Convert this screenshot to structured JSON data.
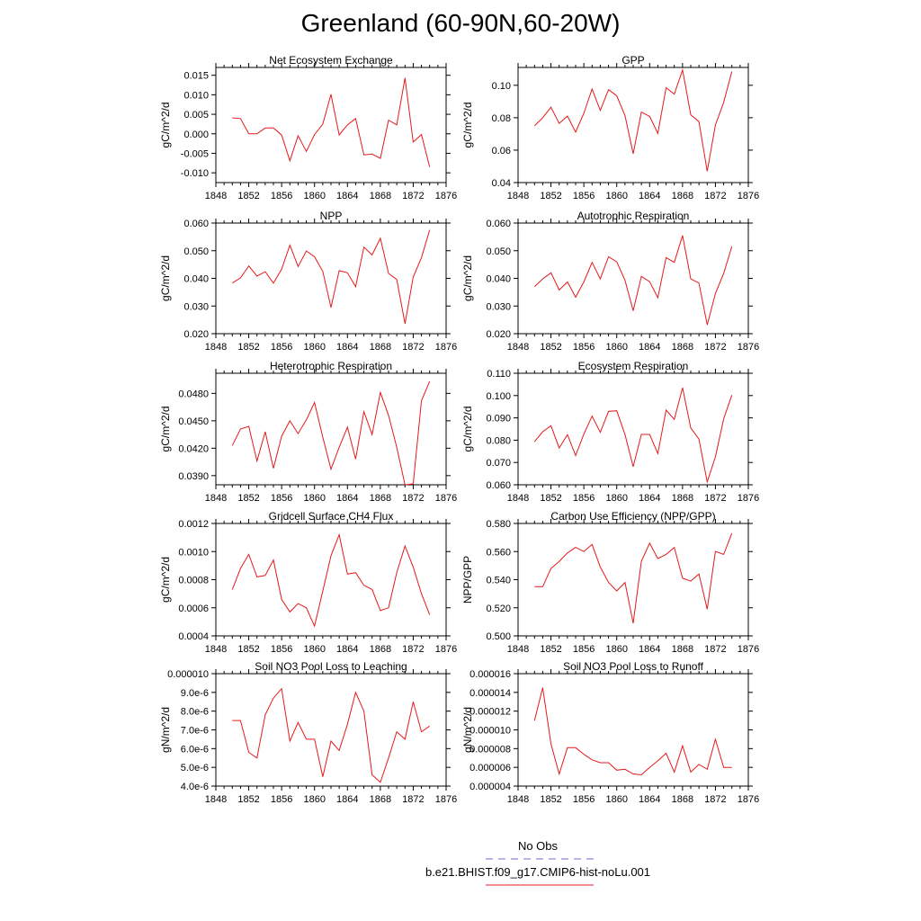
{
  "title": "Greenland (60-90N,60-20W)",
  "line_color": "#e41a1c",
  "obs_color": "#6b6bd6",
  "legend": {
    "obs_label": "No Obs",
    "case_label": "b.e21.BHIST.f09_g17.CMIP6-hist-noLu.001"
  },
  "x_ticks": [
    "1848",
    "1852",
    "1856",
    "1860",
    "1864",
    "1868",
    "1872",
    "1876"
  ],
  "chart_data": [
    {
      "type": "line",
      "title": "Net Ecosystem Exchange",
      "ylabel": "gC/m^2/d",
      "xlim": [
        1848,
        1876
      ],
      "ylim": [
        -0.0125,
        0.017
      ],
      "yticks": [
        "-0.010",
        "-0.005",
        "0.000",
        "0.005",
        "0.010",
        "0.015"
      ],
      "ytick_values": [
        -0.01,
        -0.005,
        0,
        0.005,
        0.01,
        0.015
      ],
      "x": [
        1850,
        1851,
        1852,
        1853,
        1854,
        1855,
        1856,
        1857,
        1858,
        1859,
        1860,
        1861,
        1862,
        1863,
        1864,
        1865,
        1866,
        1867,
        1868,
        1869,
        1870,
        1871,
        1872,
        1873,
        1874
      ],
      "y": [
        0.0041,
        0.0039,
        0.0,
        0.0,
        0.0015,
        0.0015,
        -0.0003,
        -0.0069,
        -0.0005,
        -0.0045,
        -0.0002,
        0.0025,
        0.0101,
        -0.0003,
        0.0023,
        0.0039,
        -0.0054,
        -0.0052,
        -0.0063,
        0.0035,
        0.0023,
        0.0143,
        -0.0021,
        -0.0002,
        -0.0085
      ]
    },
    {
      "type": "line",
      "title": "GPP",
      "ylabel": "gC/m^2/d",
      "xlim": [
        1848,
        1876
      ],
      "ylim": [
        0.04,
        0.111
      ],
      "yticks": [
        "0.04",
        "0.06",
        "0.08",
        "0.10"
      ],
      "ytick_values": [
        0.04,
        0.06,
        0.08,
        0.1
      ],
      "x": [
        1850,
        1851,
        1852,
        1853,
        1854,
        1855,
        1856,
        1857,
        1858,
        1859,
        1860,
        1861,
        1862,
        1863,
        1864,
        1865,
        1866,
        1867,
        1868,
        1869,
        1870,
        1871,
        1872,
        1873,
        1874
      ],
      "y": [
        0.075,
        0.08,
        0.0865,
        0.0765,
        0.081,
        0.0712,
        0.0827,
        0.0977,
        0.0845,
        0.0973,
        0.0935,
        0.0813,
        0.0578,
        0.0835,
        0.0808,
        0.0703,
        0.0985,
        0.0945,
        0.1095,
        0.0818,
        0.0776,
        0.047,
        0.0755,
        0.0895,
        0.1085
      ]
    },
    {
      "type": "line",
      "title": "NPP",
      "ylabel": "gC/m^2/d",
      "xlim": [
        1848,
        1876
      ],
      "ylim": [
        0.02,
        0.06
      ],
      "yticks": [
        "0.020",
        "0.030",
        "0.040",
        "0.050",
        "0.060"
      ],
      "ytick_values": [
        0.02,
        0.03,
        0.04,
        0.05,
        0.06
      ],
      "x": [
        1850,
        1851,
        1852,
        1853,
        1854,
        1855,
        1856,
        1857,
        1858,
        1859,
        1860,
        1861,
        1862,
        1863,
        1864,
        1865,
        1866,
        1867,
        1868,
        1869,
        1870,
        1871,
        1872,
        1873,
        1874
      ],
      "y": [
        0.0383,
        0.0402,
        0.0445,
        0.0408,
        0.0424,
        0.0383,
        0.0433,
        0.052,
        0.0443,
        0.0499,
        0.0478,
        0.0425,
        0.0295,
        0.0428,
        0.042,
        0.037,
        0.0513,
        0.0485,
        0.0545,
        0.0418,
        0.0396,
        0.0236,
        0.0405,
        0.0475,
        0.0575
      ]
    },
    {
      "type": "line",
      "title": "Autotrophic Respiration",
      "ylabel": "gC/m^2/d",
      "xlim": [
        1848,
        1876
      ],
      "ylim": [
        0.02,
        0.06
      ],
      "yticks": [
        "0.020",
        "0.030",
        "0.040",
        "0.050",
        "0.060"
      ],
      "ytick_values": [
        0.02,
        0.03,
        0.04,
        0.05,
        0.06
      ],
      "x": [
        1850,
        1851,
        1852,
        1853,
        1854,
        1855,
        1856,
        1857,
        1858,
        1859,
        1860,
        1861,
        1862,
        1863,
        1864,
        1865,
        1866,
        1867,
        1868,
        1869,
        1870,
        1871,
        1872,
        1873,
        1874
      ],
      "y": [
        0.037,
        0.0398,
        0.042,
        0.0358,
        0.0387,
        0.0332,
        0.0387,
        0.0458,
        0.0398,
        0.0478,
        0.046,
        0.0393,
        0.0283,
        0.0407,
        0.0388,
        0.033,
        0.0475,
        0.0458,
        0.0555,
        0.0398,
        0.0383,
        0.0232,
        0.0345,
        0.0418,
        0.0515
      ]
    },
    {
      "type": "line",
      "title": "Heterotrophic Respiration",
      "ylabel": "gC/m^2/d",
      "xlim": [
        1848,
        1876
      ],
      "ylim": [
        0.038,
        0.0502
      ],
      "yticks": [
        "0.0390",
        "0.0420",
        "0.0450",
        "0.0480"
      ],
      "ytick_values": [
        0.039,
        0.042,
        0.045,
        0.048
      ],
      "x": [
        1850,
        1851,
        1852,
        1853,
        1854,
        1855,
        1856,
        1857,
        1858,
        1859,
        1860,
        1861,
        1862,
        1863,
        1864,
        1865,
        1866,
        1867,
        1868,
        1869,
        1870,
        1871,
        1872,
        1873,
        1874
      ],
      "y": [
        0.0423,
        0.0441,
        0.0444,
        0.0406,
        0.0438,
        0.0398,
        0.0433,
        0.045,
        0.0436,
        0.0451,
        0.047,
        0.0432,
        0.0397,
        0.0421,
        0.0443,
        0.0408,
        0.046,
        0.0435,
        0.0481,
        0.0456,
        0.0421,
        0.038,
        0.0381,
        0.0472,
        0.0493
      ]
    },
    {
      "type": "line",
      "title": "Ecosystem Respiration",
      "ylabel": "gC/m^2/d",
      "xlim": [
        1848,
        1876
      ],
      "ylim": [
        0.06,
        0.11
      ],
      "yticks": [
        "0.060",
        "0.070",
        "0.080",
        "0.090",
        "0.100",
        "0.110"
      ],
      "ytick_values": [
        0.06,
        0.07,
        0.08,
        0.09,
        0.1,
        0.11
      ],
      "x": [
        1850,
        1851,
        1852,
        1853,
        1854,
        1855,
        1856,
        1857,
        1858,
        1859,
        1860,
        1861,
        1862,
        1863,
        1864,
        1865,
        1866,
        1867,
        1868,
        1869,
        1870,
        1871,
        1872,
        1873,
        1874
      ],
      "y": [
        0.0793,
        0.0838,
        0.0865,
        0.0765,
        0.0825,
        0.0731,
        0.0827,
        0.0908,
        0.0835,
        0.0929,
        0.0932,
        0.0825,
        0.0681,
        0.0826,
        0.0826,
        0.074,
        0.0935,
        0.0893,
        0.1035,
        0.0855,
        0.0805,
        0.0613,
        0.0725,
        0.0895,
        0.1002
      ]
    },
    {
      "type": "line",
      "title": "Gridcell Surface CH4 Flux",
      "ylabel": "gC/m^2/d",
      "xlim": [
        1848,
        1876
      ],
      "ylim": [
        0.0004,
        0.0012
      ],
      "yticks": [
        "0.0004",
        "0.0006",
        "0.0008",
        "0.0010",
        "0.0012"
      ],
      "ytick_values": [
        0.0004,
        0.0006,
        0.0008,
        0.001,
        0.0012
      ],
      "x": [
        1850,
        1851,
        1852,
        1853,
        1854,
        1855,
        1856,
        1857,
        1858,
        1859,
        1860,
        1861,
        1862,
        1863,
        1864,
        1865,
        1866,
        1867,
        1868,
        1869,
        1870,
        1871,
        1872,
        1873,
        1874
      ],
      "y": [
        0.00073,
        0.00088,
        0.00098,
        0.00082,
        0.00083,
        0.00094,
        0.00066,
        0.00057,
        0.00063,
        0.0006,
        0.00047,
        0.00072,
        0.00097,
        0.00112,
        0.00084,
        0.00085,
        0.00076,
        0.00073,
        0.00058,
        0.0006,
        0.00085,
        0.00104,
        0.00089,
        0.0007,
        0.00055
      ]
    },
    {
      "type": "line",
      "title": "Carbon Use Efficiency (NPP/GPP)",
      "ylabel": "NPP/GPP",
      "xlim": [
        1848,
        1876
      ],
      "ylim": [
        0.5,
        0.58
      ],
      "yticks": [
        "0.500",
        "0.520",
        "0.540",
        "0.560",
        "0.580"
      ],
      "ytick_values": [
        0.5,
        0.52,
        0.54,
        0.56,
        0.58
      ],
      "x": [
        1850,
        1851,
        1852,
        1853,
        1854,
        1855,
        1856,
        1857,
        1858,
        1859,
        1860,
        1861,
        1862,
        1863,
        1864,
        1865,
        1866,
        1867,
        1868,
        1869,
        1870,
        1871,
        1872,
        1873,
        1874
      ],
      "y": [
        0.535,
        0.535,
        0.548,
        0.553,
        0.559,
        0.563,
        0.56,
        0.565,
        0.549,
        0.538,
        0.532,
        0.538,
        0.509,
        0.553,
        0.566,
        0.555,
        0.558,
        0.563,
        0.541,
        0.539,
        0.544,
        0.519,
        0.56,
        0.558,
        0.573
      ]
    },
    {
      "type": "line",
      "title": "Soil NO3 Pool Loss to Leaching",
      "ylabel": "gN/m^2/d",
      "xlim": [
        1848,
        1876
      ],
      "ylim": [
        4e-06,
        1e-05
      ],
      "yticks": [
        "4.0e-6",
        "5.0e-6",
        "6.0e-6",
        "7.0e-6",
        "8.0e-6",
        "9.0e-6",
        "0.000010"
      ],
      "ytick_values": [
        4e-06,
        5e-06,
        6e-06,
        7e-06,
        8e-06,
        9e-06,
        1e-05
      ],
      "x": [
        1850,
        1851,
        1852,
        1853,
        1854,
        1855,
        1856,
        1857,
        1858,
        1859,
        1860,
        1861,
        1862,
        1863,
        1864,
        1865,
        1866,
        1867,
        1868,
        1869,
        1870,
        1871,
        1872,
        1873,
        1874
      ],
      "y": [
        7.5e-06,
        7.5e-06,
        5.8e-06,
        5.5e-06,
        7.8e-06,
        8.7e-06,
        9.2e-06,
        6.4e-06,
        7.4e-06,
        6.5e-06,
        6.5e-06,
        4.5e-06,
        6.4e-06,
        5.9e-06,
        7.3e-06,
        9e-06,
        8e-06,
        4.6e-06,
        4.2e-06,
        5.5e-06,
        6.9e-06,
        6.5e-06,
        8.5e-06,
        6.9e-06,
        7.2e-06
      ]
    },
    {
      "type": "line",
      "title": "Soil NO3 Pool Loss to Runoff",
      "ylabel": "gN/m^2/d",
      "xlim": [
        1848,
        1876
      ],
      "ylim": [
        4e-06,
        1.6e-05
      ],
      "yticks": [
        "0.000004",
        "0.000006",
        "0.000008",
        "0.000010",
        "0.000012",
        "0.000014",
        "0.000016"
      ],
      "ytick_values": [
        4e-06,
        6e-06,
        8e-06,
        1e-05,
        1.2e-05,
        1.4e-05,
        1.6e-05
      ],
      "x": [
        1850,
        1851,
        1852,
        1853,
        1854,
        1855,
        1856,
        1857,
        1858,
        1859,
        1860,
        1861,
        1862,
        1863,
        1864,
        1865,
        1866,
        1867,
        1868,
        1869,
        1870,
        1871,
        1872,
        1873,
        1874
      ],
      "y": [
        1.1e-05,
        1.45e-05,
        8.5e-06,
        5.3e-06,
        8.1e-06,
        8.1e-06,
        7.4e-06,
        6.8e-06,
        6.5e-06,
        6.5e-06,
        5.7e-06,
        5.8e-06,
        5.3e-06,
        5.2e-06,
        6e-06,
        6.7e-06,
        7.5e-06,
        5.5e-06,
        8.3e-06,
        5.5e-06,
        6.3e-06,
        5.8e-06,
        9e-06,
        6e-06,
        6e-06
      ]
    }
  ]
}
